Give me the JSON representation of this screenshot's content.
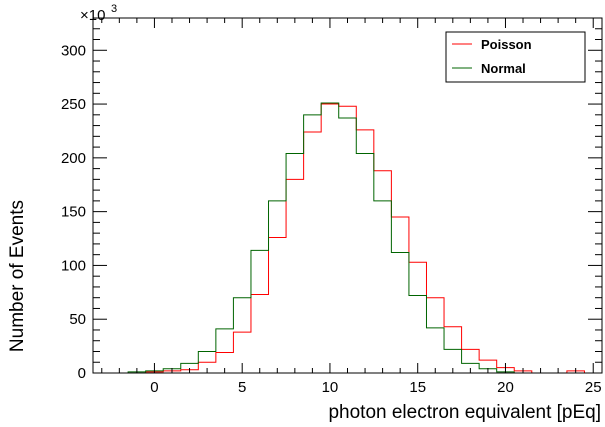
{
  "chart_data": {
    "type": "histogram",
    "xlabel": "photon electron equivalent [pEq]",
    "ylabel": "Number of Events",
    "y_multiplier_label": "×10",
    "y_multiplier_exponent": "3",
    "xlim": [
      -3.5,
      25.5
    ],
    "ylim": [
      0,
      330
    ],
    "bin_width": 1,
    "bin_edges_start": -3.5,
    "x_ticks": [
      0,
      5,
      10,
      15,
      20,
      25
    ],
    "y_ticks": [
      0,
      50,
      100,
      150,
      200,
      250,
      300
    ],
    "grid": false,
    "legend_position": "top-right",
    "series": [
      {
        "name": "Poisson",
        "color": "#ff0000",
        "values": [
          0,
          0,
          0,
          1,
          2,
          3,
          10,
          19,
          38,
          73,
          126,
          180,
          224,
          250,
          248,
          226,
          188,
          145,
          103,
          70,
          43,
          22,
          12,
          5,
          2,
          0,
          0,
          2,
          0
        ]
      },
      {
        "name": "Normal",
        "color": "#006400",
        "values": [
          0,
          0,
          1,
          2,
          4,
          9,
          20,
          41,
          70,
          114,
          160,
          204,
          240,
          251,
          237,
          204,
          160,
          112,
          72,
          42,
          22,
          9,
          4,
          1,
          0,
          0,
          0,
          0,
          0
        ]
      }
    ]
  }
}
